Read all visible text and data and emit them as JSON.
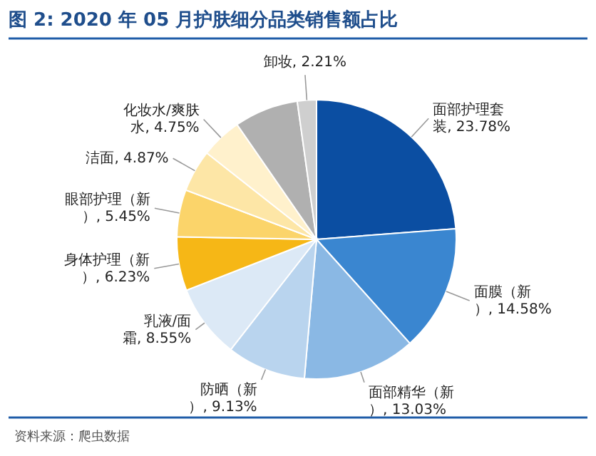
{
  "chart_data": {
    "type": "pie",
    "title": "图 2: 2020 年 05 月护肤细分品类销售额占比",
    "categories": [
      "面部护理套装",
      "面膜（新）",
      "面部精华（新）",
      "防晒（新）",
      "乳液/面霜",
      "身体护理（新）",
      "眼部护理（新）",
      "洁面",
      "化妆水/爽肤水",
      null,
      "卸妆"
    ],
    "values": [
      23.78,
      14.58,
      13.03,
      9.13,
      8.55,
      6.23,
      5.45,
      4.87,
      4.75,
      7.42,
      2.21
    ],
    "value_labels": [
      "23.78%",
      "14.58%",
      "13.03%",
      "9.13%",
      "8.55%",
      "6.23%",
      "5.45%",
      "4.87%",
      "4.75%",
      null,
      "2.21%"
    ],
    "colors": [
      "#0b4ea2",
      "#3a86d0",
      "#8ab8e4",
      "#b9d4ee",
      "#dce9f6",
      "#f6b716",
      "#fbd46a",
      "#fde6a6",
      "#fff1cc",
      "#b0b0b0",
      "#cfcfcf"
    ],
    "annotations": [
      "资料来源：爬虫数据"
    ]
  }
}
